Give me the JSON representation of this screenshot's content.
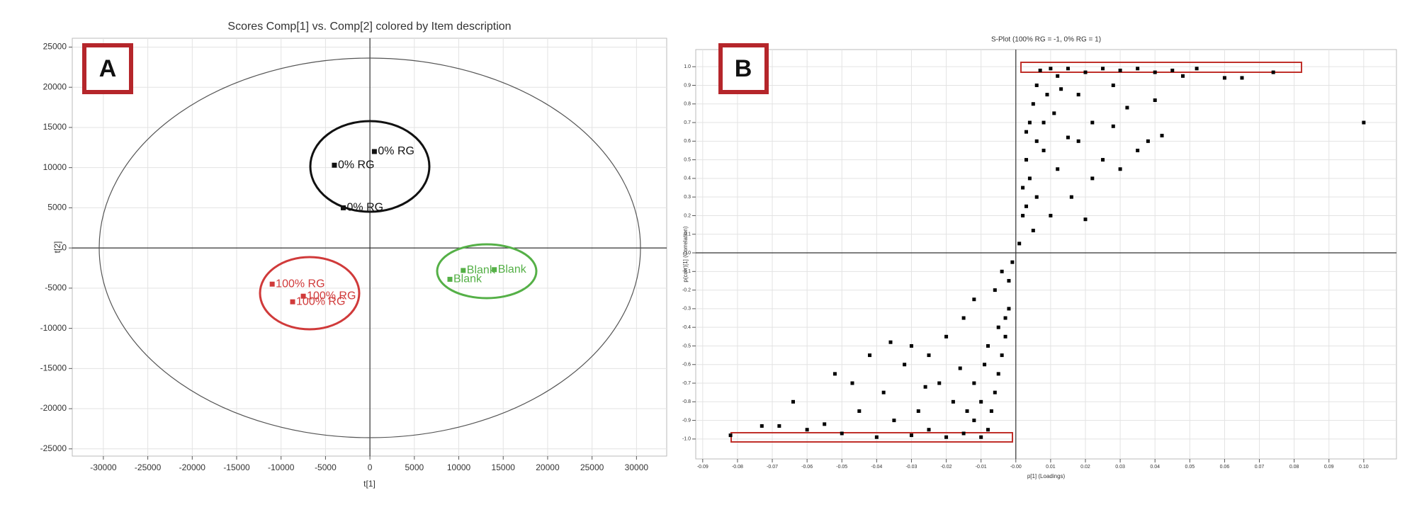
{
  "chart_data": [
    {
      "type": "scatter",
      "panel_label": "A",
      "title": "Scores Comp[1] vs. Comp[2] colored by Item description",
      "x_label": "t[1]",
      "y_label": "t[2]",
      "series": [
        {
          "name": "0% RG",
          "color": "#111111",
          "x": [
            500,
            -4000,
            -3000
          ],
          "values": [
            12000,
            10300,
            5000
          ]
        },
        {
          "name": "100% RG",
          "color": "#d03a3a",
          "x": [
            -11000,
            -7500,
            -8700
          ],
          "values": [
            -4500,
            -6000,
            -6700
          ]
        },
        {
          "name": "Blank",
          "color": "#55b047",
          "x": [
            10500,
            14000,
            9000
          ],
          "values": [
            -2800,
            -2700,
            -3900
          ]
        }
      ],
      "xlim": [
        -33500,
        33400
      ],
      "xticks": [
        -30000,
        -25000,
        -20000,
        -15000,
        -10000,
        -5000,
        0,
        5000,
        10000,
        15000,
        20000,
        25000,
        30000
      ],
      "ylim": [
        -25900,
        26100
      ],
      "yticks": [
        -25000,
        -20000,
        -15000,
        -10000,
        -5000,
        0,
        5000,
        10000,
        15000,
        20000,
        25000
      ],
      "grid": true
    },
    {
      "type": "scatter",
      "panel_label": "B",
      "title": "S-Plot (100% RG = -1, 0% RG = 1)",
      "x_label": "p[1] (Loadings)",
      "y_label": "p(corr)[1] (Correlation)",
      "color": "#000000",
      "x": [
        0.001,
        0.002,
        0.002,
        0.003,
        0.003,
        0.004,
        0.005,
        0.006,
        0.007,
        0.01,
        0.012,
        0.015,
        0.018,
        0.02,
        0.022,
        0.025,
        0.028,
        0.03,
        0.032,
        0.035,
        0.038,
        0.04,
        0.045,
        0.048,
        0.052,
        0.06,
        0.065,
        0.074,
        0.1,
        0.008,
        0.012,
        0.016,
        0.02,
        0.011,
        0.015,
        0.025,
        0.03,
        0.035,
        0.04,
        0.042,
        0.004,
        0.006,
        0.009,
        0.013,
        0.006,
        0.01,
        0.005,
        0.018,
        0.022,
        0.028,
        0.008,
        0.003,
        -0.001,
        -0.002,
        -0.002,
        -0.003,
        -0.004,
        -0.005,
        -0.006,
        -0.007,
        -0.008,
        -0.01,
        -0.012,
        -0.015,
        -0.018,
        -0.02,
        -0.022,
        -0.025,
        -0.028,
        -0.03,
        -0.032,
        -0.035,
        -0.038,
        -0.04,
        -0.042,
        -0.045,
        -0.05,
        -0.052,
        -0.055,
        -0.06,
        -0.064,
        -0.068,
        -0.073,
        -0.082,
        -0.047,
        -0.036,
        -0.03,
        -0.025,
        -0.02,
        -0.015,
        -0.012,
        -0.009,
        -0.006,
        -0.004,
        -0.012,
        -0.016,
        -0.003,
        -0.005,
        -0.008,
        -0.01,
        -0.014,
        -0.026
      ],
      "values": [
        0.05,
        0.2,
        0.35,
        0.5,
        0.65,
        0.7,
        0.8,
        0.9,
        0.98,
        0.99,
        0.95,
        0.99,
        0.85,
        0.97,
        0.7,
        0.99,
        0.9,
        0.98,
        0.78,
        0.99,
        0.6,
        0.97,
        0.98,
        0.95,
        0.99,
        0.94,
        0.94,
        0.97,
        0.7,
        0.55,
        0.45,
        0.3,
        0.18,
        0.75,
        0.62,
        0.5,
        0.45,
        0.55,
        0.82,
        0.63,
        0.4,
        0.6,
        0.85,
        0.88,
        0.3,
        0.2,
        0.12,
        0.6,
        0.4,
        0.68,
        0.7,
        0.25,
        -0.05,
        -0.15,
        -0.3,
        -0.45,
        -0.55,
        -0.65,
        -0.75,
        -0.85,
        -0.95,
        -0.99,
        -0.9,
        -0.97,
        -0.8,
        -0.99,
        -0.7,
        -0.95,
        -0.85,
        -0.98,
        -0.6,
        -0.9,
        -0.75,
        -0.99,
        -0.55,
        -0.85,
        -0.97,
        -0.65,
        -0.92,
        -0.95,
        -0.8,
        -0.93,
        -0.93,
        -0.98,
        -0.7,
        -0.48,
        -0.5,
        -0.55,
        -0.45,
        -0.35,
        -0.25,
        -0.6,
        -0.2,
        -0.1,
        -0.7,
        -0.62,
        -0.35,
        -0.4,
        -0.5,
        -0.8,
        -0.85,
        -0.72
      ],
      "xlim": [
        -0.092,
        0.1094
      ],
      "xticks": [
        -0.09,
        -0.08,
        -0.07,
        -0.06,
        -0.05,
        -0.04,
        -0.03,
        -0.02,
        -0.01,
        {
          "value": 0,
          "label": "-0.00"
        },
        0.01,
        0.02,
        0.03,
        0.04,
        0.05,
        0.06,
        0.07,
        0.08,
        0.09,
        {
          "value": 0.1,
          "label": "0.10"
        }
      ],
      "ylim": [
        -1.107,
        1.092
      ],
      "yticks": [
        {
          "value": -1,
          "label": "-1.0"
        },
        -0.9,
        -0.8,
        -0.7,
        -0.6,
        -0.5,
        -0.4,
        -0.3,
        -0.2,
        -0.1,
        {
          "value": 0,
          "label": "0.0"
        },
        0.1,
        0.2,
        0.3,
        0.4,
        0.5,
        0.6,
        0.7,
        0.8,
        0.9,
        {
          "value": 1,
          "label": "1.0"
        }
      ],
      "grid": true
    }
  ]
}
